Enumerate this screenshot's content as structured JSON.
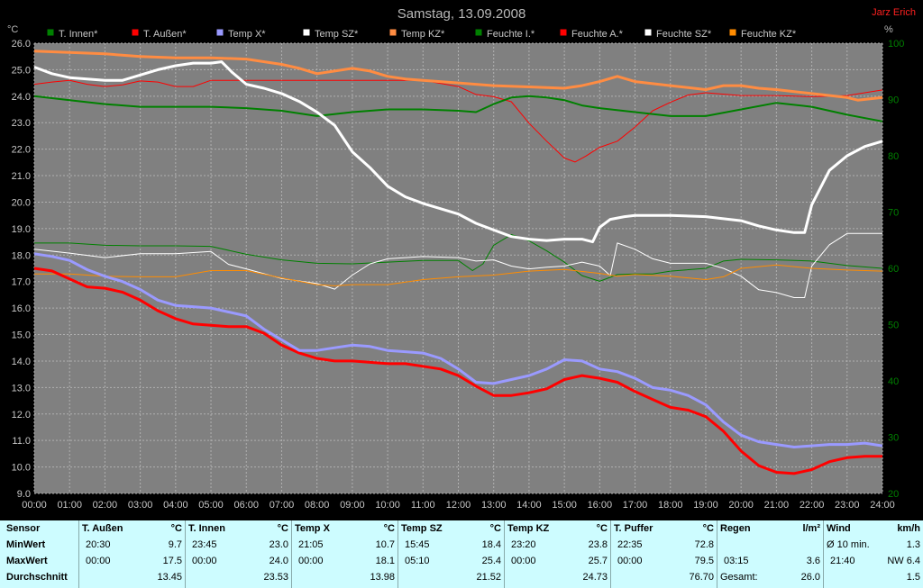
{
  "chart_data": {
    "type": "line",
    "title": "Samstag, 13.09.2008",
    "author": "Jarz Erich",
    "xticks": [
      "00:00",
      "01:00",
      "02:00",
      "03:00",
      "04:00",
      "05:00",
      "06:00",
      "07:00",
      "08:00",
      "09:00",
      "10:00",
      "11:00",
      "12:00",
      "13:00",
      "14:00",
      "15:00",
      "16:00",
      "17:00",
      "18:00",
      "19:00",
      "20:00",
      "21:00",
      "22:00",
      "23:00",
      "24:00"
    ],
    "xlim": [
      0,
      24
    ],
    "ylim_left": [
      9.0,
      26.0
    ],
    "ylim_right": [
      20,
      100
    ],
    "ylabel_left": "°C",
    "ylabel_right": "%",
    "left_ticks": [
      "9.0",
      "10.0",
      "11.0",
      "12.0",
      "13.0",
      "14.0",
      "15.0",
      "16.0",
      "17.0",
      "18.0",
      "19.0",
      "20.0",
      "21.0",
      "22.0",
      "23.0",
      "24.0",
      "25.0",
      "26.0"
    ],
    "right_ticks": [
      "20",
      "30",
      "40",
      "50",
      "60",
      "70",
      "80",
      "90",
      "100"
    ],
    "grid": true,
    "legend_placement": "top",
    "series": [
      {
        "name": "T. Innen*",
        "color": "#008000",
        "axis": "left",
        "width": 2,
        "x": [
          0,
          1,
          2,
          3,
          4,
          5,
          6,
          7,
          8,
          9,
          10,
          11,
          12,
          12.5,
          13,
          13.5,
          14,
          14.5,
          15,
          15.5,
          16,
          17,
          18,
          19,
          20,
          21,
          22,
          23,
          24
        ],
        "y": [
          24.0,
          23.85,
          23.7,
          23.6,
          23.6,
          23.6,
          23.55,
          23.45,
          23.25,
          23.4,
          23.5,
          23.5,
          23.45,
          23.4,
          23.7,
          23.95,
          24.0,
          23.95,
          23.85,
          23.65,
          23.55,
          23.4,
          23.25,
          23.25,
          23.5,
          23.75,
          23.6,
          23.3,
          23.05
        ]
      },
      {
        "name": "T. Außen*",
        "color": "#ff0000",
        "axis": "left",
        "width": 3,
        "x": [
          0,
          0.5,
          1,
          1.5,
          2,
          2.5,
          3,
          3.5,
          4,
          4.5,
          5,
          5.5,
          6,
          6.5,
          7,
          7.5,
          8,
          8.5,
          9,
          9.5,
          10,
          10.5,
          11,
          11.5,
          12,
          12.5,
          13,
          13.5,
          14,
          14.5,
          15,
          15.5,
          16,
          16.5,
          17,
          17.5,
          18,
          18.5,
          19,
          19.5,
          20,
          20.5,
          21,
          21.5,
          22,
          22.5,
          23,
          23.5,
          24
        ],
        "y": [
          17.5,
          17.4,
          17.1,
          16.8,
          16.75,
          16.6,
          16.3,
          15.9,
          15.6,
          15.4,
          15.35,
          15.3,
          15.3,
          15.05,
          14.6,
          14.3,
          14.1,
          14.0,
          14.0,
          13.95,
          13.9,
          13.9,
          13.8,
          13.7,
          13.45,
          13.05,
          12.7,
          12.7,
          12.8,
          12.95,
          13.3,
          13.45,
          13.35,
          13.2,
          12.85,
          12.55,
          12.25,
          12.15,
          11.9,
          11.35,
          10.6,
          10.05,
          9.8,
          9.75,
          9.9,
          10.2,
          10.35,
          10.4,
          10.4
        ]
      },
      {
        "name": "Temp X*",
        "color": "#9a9aff",
        "axis": "left",
        "width": 3,
        "x": [
          0,
          0.5,
          1,
          1.5,
          2,
          2.5,
          3,
          3.5,
          4,
          4.5,
          5,
          5.5,
          6,
          6.5,
          7,
          7.5,
          8,
          8.5,
          9,
          9.5,
          10,
          10.5,
          11,
          11.5,
          12,
          12.5,
          13,
          13.5,
          14,
          14.5,
          15,
          15.5,
          16,
          16.5,
          17,
          17.5,
          18,
          18.5,
          19,
          19.5,
          20,
          20.5,
          21,
          21.5,
          22,
          22.5,
          23,
          23.5,
          24
        ],
        "y": [
          18.05,
          17.95,
          17.8,
          17.45,
          17.2,
          17.0,
          16.7,
          16.3,
          16.1,
          16.05,
          16.0,
          15.85,
          15.7,
          15.2,
          14.8,
          14.4,
          14.4,
          14.5,
          14.6,
          14.55,
          14.4,
          14.35,
          14.3,
          14.1,
          13.7,
          13.2,
          13.15,
          13.3,
          13.45,
          13.7,
          14.05,
          14.0,
          13.7,
          13.6,
          13.35,
          13.0,
          12.9,
          12.7,
          12.35,
          11.7,
          11.2,
          10.95,
          10.85,
          10.75,
          10.8,
          10.85,
          10.85,
          10.9,
          10.8
        ]
      },
      {
        "name": "Temp SZ*",
        "color": "#ffffff",
        "axis": "left",
        "width": 3,
        "x": [
          0,
          0.5,
          1,
          1.5,
          2,
          2.5,
          3,
          3.5,
          4,
          4.5,
          5,
          5.3,
          5.6,
          6,
          6.5,
          7,
          7.5,
          8,
          8.5,
          9,
          9.5,
          10,
          10.5,
          11,
          11.5,
          12,
          12.5,
          13,
          13.5,
          14,
          14.5,
          15,
          15.5,
          15.8,
          16,
          16.3,
          16.7,
          17,
          18,
          19,
          20,
          20.5,
          21,
          21.5,
          21.8,
          22,
          22.5,
          23,
          23.5,
          24
        ],
        "y": [
          25.1,
          24.85,
          24.7,
          24.65,
          24.6,
          24.6,
          24.8,
          25.0,
          25.15,
          25.25,
          25.25,
          25.3,
          24.9,
          24.45,
          24.3,
          24.1,
          23.8,
          23.4,
          22.9,
          21.9,
          21.3,
          20.6,
          20.2,
          19.95,
          19.75,
          19.55,
          19.2,
          18.95,
          18.7,
          18.6,
          18.55,
          18.6,
          18.6,
          18.5,
          19.05,
          19.35,
          19.45,
          19.5,
          19.5,
          19.45,
          19.3,
          19.1,
          18.95,
          18.85,
          18.85,
          19.9,
          21.2,
          21.75,
          22.1,
          22.3
        ]
      },
      {
        "name": "Temp KZ*",
        "color": "#ff8c42",
        "axis": "left",
        "width": 3,
        "x": [
          0,
          1,
          2,
          3,
          4,
          5,
          6,
          7,
          7.5,
          8,
          8.5,
          9,
          9.5,
          10,
          10.5,
          11,
          12,
          13,
          14,
          15,
          15.5,
          16,
          16.5,
          17,
          18,
          19,
          19.5,
          20,
          20.5,
          21,
          22,
          23,
          23.3,
          24
        ],
        "y": [
          25.7,
          25.65,
          25.6,
          25.5,
          25.45,
          25.45,
          25.4,
          25.2,
          25.05,
          24.85,
          24.95,
          25.05,
          24.95,
          24.75,
          24.65,
          24.6,
          24.5,
          24.4,
          24.35,
          24.3,
          24.4,
          24.55,
          24.75,
          24.55,
          24.4,
          24.25,
          24.4,
          24.4,
          24.3,
          24.25,
          24.1,
          23.95,
          23.85,
          23.95
        ]
      },
      {
        "name": "Feuchte I.*",
        "color": "#008000",
        "axis": "right",
        "width": 1,
        "x": [
          0,
          1,
          2,
          3,
          4,
          5,
          6,
          7,
          8,
          9,
          10,
          11,
          12,
          12.4,
          12.7,
          13,
          13.5,
          14,
          14.5,
          15,
          15.5,
          16,
          16.5,
          17,
          17.5,
          18,
          19,
          19.5,
          20,
          21,
          22,
          23,
          24
        ],
        "y": [
          64.5,
          64.5,
          64.1,
          64.0,
          64.0,
          63.9,
          62.5,
          61.5,
          60.9,
          60.8,
          61.1,
          61.4,
          61.4,
          59.6,
          60.8,
          64.1,
          66.0,
          64.9,
          63.1,
          61.1,
          58.7,
          57.7,
          58.9,
          59.0,
          59.0,
          59.5,
          60.0,
          61.3,
          61.6,
          61.5,
          61.3,
          60.5,
          60.0
        ]
      },
      {
        "name": "Feuchte A.*",
        "color": "#ff0000",
        "axis": "right",
        "width": 1,
        "x": [
          0,
          0.5,
          1,
          1.5,
          2,
          2.5,
          3,
          3.5,
          4,
          4.5,
          5,
          6,
          7,
          8,
          9,
          10,
          11,
          12,
          12.5,
          13,
          13.5,
          14,
          14.5,
          15,
          15.3,
          15.6,
          16,
          16.5,
          17,
          17.5,
          18,
          18.5,
          19,
          20,
          21,
          22,
          23,
          24
        ],
        "y": [
          92.7,
          93.1,
          93.4,
          92.7,
          92.3,
          92.6,
          93.3,
          93.1,
          92.3,
          92.3,
          93.4,
          93.4,
          93.4,
          93.4,
          93.4,
          93.4,
          93.4,
          92.3,
          90.9,
          90.5,
          89.6,
          85.8,
          82.6,
          79.6,
          78.9,
          79.9,
          81.5,
          82.6,
          85.1,
          88.0,
          89.5,
          90.8,
          91.2,
          90.7,
          90.7,
          90.5,
          90.7,
          91.7
        ]
      },
      {
        "name": "Feuchte SZ*",
        "color": "#ffffff",
        "axis": "right",
        "width": 1,
        "x": [
          0,
          1,
          2,
          3,
          4,
          5,
          5.5,
          6,
          7,
          8,
          8.5,
          9,
          9.5,
          10,
          11,
          12,
          12.5,
          13,
          13.5,
          14,
          14.5,
          15,
          15.5,
          16,
          16.3,
          16.5,
          17,
          17.5,
          18,
          19,
          19.5,
          20,
          20.5,
          21,
          21.5,
          21.8,
          22,
          22.5,
          23,
          24
        ],
        "y": [
          63.4,
          62.7,
          61.9,
          62.6,
          62.6,
          63.0,
          60.7,
          59.9,
          58.2,
          57.3,
          56.3,
          58.8,
          60.8,
          61.7,
          62.1,
          61.9,
          61.3,
          61.5,
          60.4,
          59.9,
          60.2,
          60.4,
          61.1,
          60.4,
          58.7,
          64.5,
          63.4,
          61.7,
          60.9,
          60.9,
          60.0,
          58.6,
          56.2,
          55.7,
          54.8,
          54.8,
          60.4,
          64.2,
          66.2,
          66.2
        ]
      },
      {
        "name": "Feuchte KZ*",
        "color": "#ff8c00",
        "axis": "right",
        "width": 1,
        "x": [
          0,
          1,
          2,
          3,
          4,
          5,
          6,
          7,
          8,
          8.5,
          9,
          10,
          11,
          12,
          13,
          14,
          15,
          16,
          16.5,
          17,
          18,
          19,
          19.5,
          20,
          21,
          22,
          23,
          24
        ],
        "y": [
          59.0,
          59.0,
          58.6,
          58.5,
          58.5,
          59.6,
          59.6,
          58.3,
          57.1,
          56.9,
          57.1,
          57.1,
          58.0,
          58.5,
          58.8,
          59.5,
          59.8,
          59.1,
          58.6,
          58.9,
          58.6,
          58.0,
          58.5,
          60.0,
          60.6,
          60.0,
          59.7,
          59.5
        ]
      }
    ]
  },
  "stats": {
    "sensor_label": "Sensor",
    "row_labels": [
      "MinWert",
      "MaxWert",
      "Durchschnitt"
    ],
    "columns": [
      {
        "name": "T. Außen",
        "unit": "°C",
        "min_time": "20:30",
        "min": "9.7",
        "max_time": "00:00",
        "max": "17.5",
        "avg": "13.45"
      },
      {
        "name": "T. Innen",
        "unit": "°C",
        "min_time": "23:45",
        "min": "23.0",
        "max_time": "00:00",
        "max": "24.0",
        "avg": "23.53"
      },
      {
        "name": "Temp X",
        "unit": "°C",
        "min_time": "21:05",
        "min": "10.7",
        "max_time": "00:00",
        "max": "18.1",
        "avg": "13.98"
      },
      {
        "name": "Temp SZ",
        "unit": "°C",
        "min_time": "15:45",
        "min": "18.4",
        "max_time": "05:10",
        "max": "25.4",
        "avg": "21.52"
      },
      {
        "name": "Temp KZ",
        "unit": "°C",
        "min_time": "23:20",
        "min": "23.8",
        "max_time": "00:00",
        "max": "25.7",
        "avg": "24.73"
      },
      {
        "name": "T. Puffer",
        "unit": "°C",
        "min_time": "22:35",
        "min": "72.8",
        "max_time": "00:00",
        "max": "79.5",
        "avg": "76.70"
      }
    ],
    "rain": {
      "name": "Regen",
      "unit": "l/m²",
      "time": "03:15",
      "value": "3.6",
      "total_label": "Gesamt:",
      "total": "26.0"
    },
    "wind": {
      "name": "Wind",
      "unit": "km/h",
      "avg_label": "Ø 10 min.",
      "avg": "1.3",
      "max_time": "21:40",
      "max": "NW 6.4",
      "mean": "1.5"
    }
  }
}
